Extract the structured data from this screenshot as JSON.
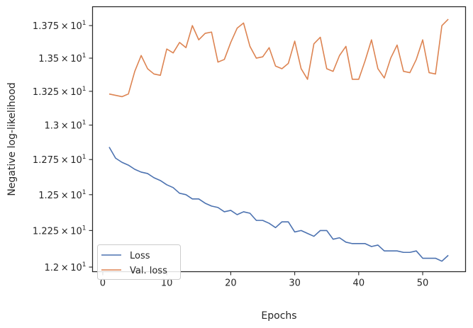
{
  "chart_data": {
    "type": "line",
    "title": "",
    "xlabel": "Epochs",
    "ylabel": "Negative log-likelihood",
    "xlim": [
      -1.6,
      56.7
    ],
    "ylim": [
      11.969,
      13.897
    ],
    "yscale": "log",
    "grid": false,
    "legend_position": "lower-left",
    "x_ticks": [
      0,
      10,
      20,
      30,
      40,
      50
    ],
    "x_tick_labels": [
      "0",
      "10",
      "20",
      "30",
      "40",
      "50"
    ],
    "y_ticks": [
      12.0,
      12.25,
      12.5,
      12.75,
      13.0,
      13.25,
      13.5,
      13.75
    ],
    "y_tick_labels": [
      {
        "mantissa": "1.2",
        "base": "10",
        "exp": "1"
      },
      {
        "mantissa": "1.225",
        "base": "10",
        "exp": "1"
      },
      {
        "mantissa": "1.25",
        "base": "10",
        "exp": "1"
      },
      {
        "mantissa": "1.275",
        "base": "10",
        "exp": "1"
      },
      {
        "mantissa": "1.3",
        "base": "10",
        "exp": "1"
      },
      {
        "mantissa": "1.325",
        "base": "10",
        "exp": "1"
      },
      {
        "mantissa": "1.35",
        "base": "10",
        "exp": "1"
      },
      {
        "mantissa": "1.375",
        "base": "10",
        "exp": "1"
      }
    ],
    "x": [
      1,
      2,
      3,
      4,
      5,
      6,
      7,
      8,
      9,
      10,
      11,
      12,
      13,
      14,
      15,
      16,
      17,
      18,
      19,
      20,
      21,
      22,
      23,
      24,
      25,
      26,
      27,
      28,
      29,
      30,
      31,
      32,
      33,
      34,
      35,
      36,
      37,
      38,
      39,
      40,
      41,
      42,
      43,
      44,
      45,
      46,
      47,
      48,
      49,
      50,
      51,
      52,
      53,
      54
    ],
    "series": [
      {
        "name": "Loss",
        "color": "#4c72b0",
        "values": [
          12.84,
          12.76,
          12.73,
          12.71,
          12.68,
          12.66,
          12.65,
          12.62,
          12.6,
          12.57,
          12.55,
          12.51,
          12.5,
          12.47,
          12.47,
          12.44,
          12.42,
          12.41,
          12.38,
          12.39,
          12.36,
          12.38,
          12.37,
          12.32,
          12.32,
          12.3,
          12.27,
          12.31,
          12.31,
          12.24,
          12.25,
          12.23,
          12.21,
          12.25,
          12.25,
          12.19,
          12.2,
          12.17,
          12.16,
          12.16,
          12.16,
          12.14,
          12.15,
          12.11,
          12.11,
          12.11,
          12.1,
          12.1,
          12.11,
          12.06,
          12.06,
          12.06,
          12.04,
          12.08
        ]
      },
      {
        "name": "Val. loss",
        "color": "#dd8452",
        "values": [
          13.23,
          13.22,
          13.21,
          13.23,
          13.4,
          13.52,
          13.42,
          13.38,
          13.37,
          13.57,
          13.54,
          13.62,
          13.58,
          13.75,
          13.64,
          13.69,
          13.7,
          13.47,
          13.49,
          13.62,
          13.73,
          13.77,
          13.59,
          13.5,
          13.51,
          13.58,
          13.44,
          13.42,
          13.46,
          13.63,
          13.42,
          13.34,
          13.61,
          13.66,
          13.42,
          13.4,
          13.52,
          13.59,
          13.34,
          13.34,
          13.48,
          13.64,
          13.42,
          13.35,
          13.5,
          13.6,
          13.4,
          13.39,
          13.49,
          13.64,
          13.39,
          13.38,
          13.75,
          13.8
        ]
      }
    ]
  }
}
